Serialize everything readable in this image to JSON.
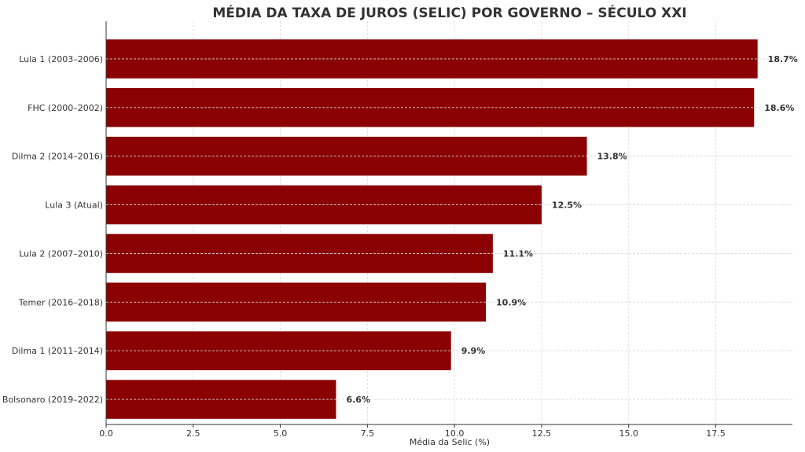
{
  "chart_data": {
    "type": "bar",
    "orientation": "horizontal",
    "title": "MÉDIA DA TAXA DE JUROS (SELIC) POR GOVERNO – SÉCULO XXI",
    "xlabel": "Média da Selic (%)",
    "ylabel": "",
    "categories": [
      "Lula 1 (2003–2006)",
      "FHC (2000–2002)",
      "Dilma 2 (2014–2016)",
      "Lula 3 (Atual)",
      "Lula 2 (2007–2010)",
      "Temer (2016–2018)",
      "Dilma 1 (2011–2014)",
      "Bolsonaro (2019–2022)"
    ],
    "values": [
      18.7,
      18.6,
      13.8,
      12.5,
      11.1,
      10.9,
      9.9,
      6.6
    ],
    "value_labels": [
      "18.7%",
      "18.6%",
      "13.8%",
      "12.5%",
      "11.1%",
      "10.9%",
      "9.9%",
      "6.6%"
    ],
    "xlim": [
      0,
      19.7
    ],
    "xticks": [
      0,
      2.5,
      5,
      7.5,
      10,
      12.5,
      15,
      17.5
    ],
    "xtick_labels": [
      "0.0",
      "2.5",
      "5.0",
      "7.5",
      "10.0",
      "12.5",
      "15.0",
      "17.5"
    ],
    "grid": true,
    "legend": "none",
    "colors": {
      "bar": "#8b0000",
      "text": "#333333",
      "grid": "#d9d9d9",
      "axis": "#333333"
    }
  }
}
